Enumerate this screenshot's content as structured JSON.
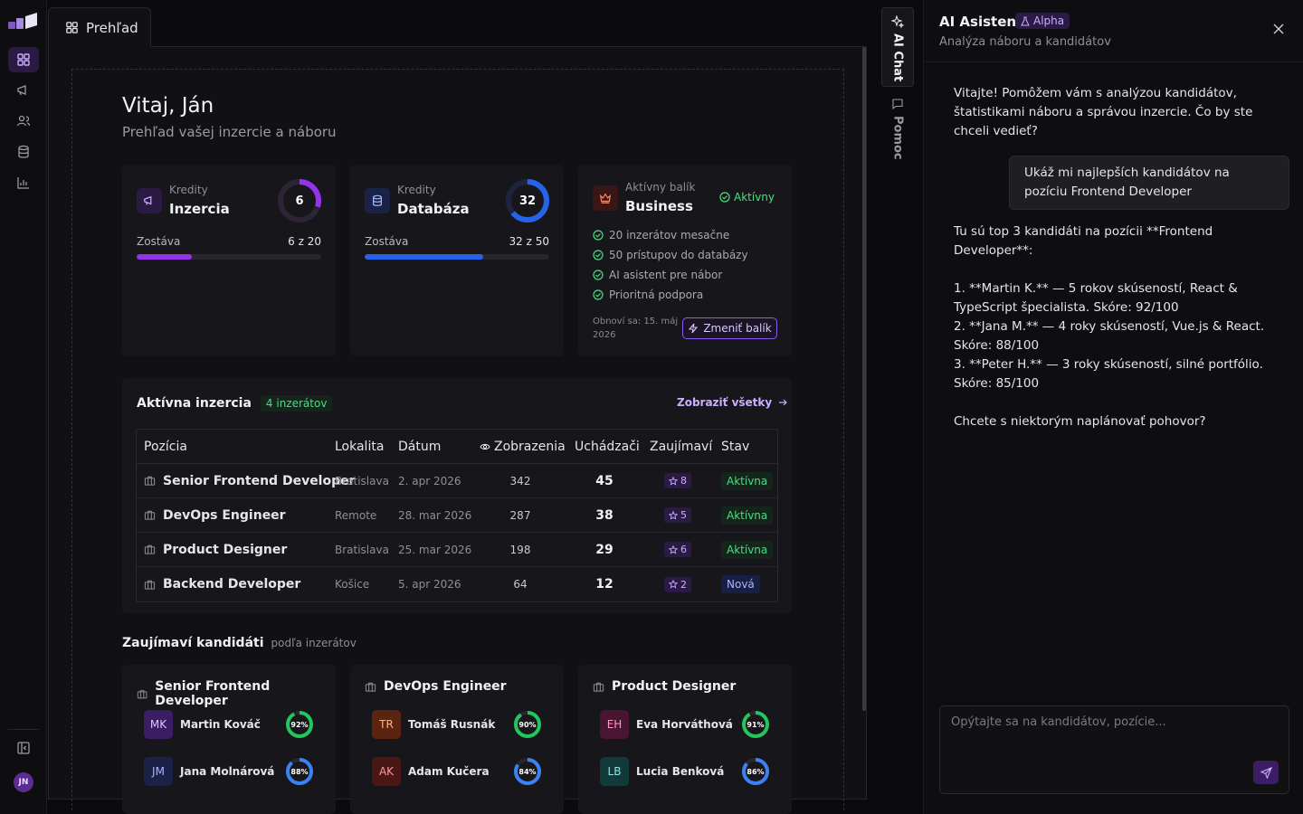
{
  "tab": {
    "label": "Prehľad"
  },
  "user": {
    "initials": "JN"
  },
  "header": {
    "greeting": "Vitaj, Ján",
    "subtitle": "Prehľad vašej inzercie a náboru"
  },
  "credits": [
    {
      "label": "Kredity",
      "name": "Inzercia",
      "value": "6",
      "remaining_label": "Zostáva",
      "remaining": "6 z 20",
      "fraction": 0.3,
      "color": "#9333ea",
      "bg": "#2a1a44"
    },
    {
      "label": "Kredity",
      "name": "Databáza",
      "value": "32",
      "remaining_label": "Zostáva",
      "remaining": "32 z 50",
      "fraction": 0.64,
      "color": "#2563eb",
      "bg": "#1b2248"
    }
  ],
  "package": {
    "label": "Aktívny balík",
    "name": "Business",
    "status": "Aktívny",
    "features": [
      "20 inzerátov mesačne",
      "50 prístupov do databázy",
      "AI asistent pre nábor",
      "Prioritná podpora"
    ],
    "renew": "Obnoví sa: 15. máj 2026",
    "change_label": "Zmeniť balík"
  },
  "listings": {
    "title": "Aktívna inzercia",
    "count": "4 inzerátov",
    "view_all": "Zobraziť všetky",
    "columns": [
      "Pozícia",
      "Lokalita",
      "Dátum",
      "Zobrazenia",
      "Uchádzači",
      "Zaujímaví",
      "Stav"
    ],
    "rows": [
      {
        "position": "Senior Frontend Developer",
        "location": "Bratislava",
        "date": "2. apr 2026",
        "views": "342",
        "applicants": "45",
        "interesting": "8",
        "status": "Aktívna",
        "status_type": "green"
      },
      {
        "position": "DevOps Engineer",
        "location": "Remote",
        "date": "28. mar 2026",
        "views": "287",
        "applicants": "38",
        "interesting": "5",
        "status": "Aktívna",
        "status_type": "green"
      },
      {
        "position": "Product Designer",
        "location": "Bratislava",
        "date": "25. mar 2026",
        "views": "198",
        "applicants": "29",
        "interesting": "6",
        "status": "Aktívna",
        "status_type": "green"
      },
      {
        "position": "Backend Developer",
        "location": "Košice",
        "date": "5. apr 2026",
        "views": "64",
        "applicants": "12",
        "interesting": "2",
        "status": "Nová",
        "status_type": "blue"
      }
    ]
  },
  "candidates": {
    "title": "Zaujímaví kandidáti",
    "subtitle": "podľa inzerátov",
    "groups": [
      {
        "position": "Senior Frontend Developer",
        "people": [
          {
            "initials": "MK",
            "name": "Martin Kováč",
            "score": 92,
            "score_label": "92%",
            "av_bg": "#3b1d63",
            "av_fg": "#d9c8ff",
            "ring": "#22c55e"
          },
          {
            "initials": "JM",
            "name": "Jana Molnárová",
            "score": 88,
            "score_label": "88%",
            "av_bg": "#1b2248",
            "av_fg": "#a5b8ff",
            "ring": "#3b82f6"
          }
        ]
      },
      {
        "position": "DevOps Engineer",
        "people": [
          {
            "initials": "TR",
            "name": "Tomáš Rusnák",
            "score": 90,
            "score_label": "90%",
            "av_bg": "#5a2410",
            "av_fg": "#ffb48a",
            "ring": "#22c55e"
          },
          {
            "initials": "AK",
            "name": "Adam Kučera",
            "score": 84,
            "score_label": "84%",
            "av_bg": "#4a1717",
            "av_fg": "#ff9a9a",
            "ring": "#3b82f6"
          }
        ]
      },
      {
        "position": "Product Designer",
        "people": [
          {
            "initials": "EH",
            "name": "Eva Horváthová",
            "score": 91,
            "score_label": "91%",
            "av_bg": "#4a1530",
            "av_fg": "#ff9ac8",
            "ring": "#22c55e"
          },
          {
            "initials": "LB",
            "name": "Lucia Benková",
            "score": 86,
            "score_label": "86%",
            "av_bg": "#123a3a",
            "av_fg": "#8fe3e3",
            "ring": "#3b82f6"
          }
        ]
      }
    ]
  },
  "vtabs": {
    "ai_chat": "AI Chat",
    "help": "Pomoc"
  },
  "ai": {
    "title": "AI Asistent",
    "badge": "Alpha",
    "subtitle": "Analýza náboru a kandidátov",
    "messages": [
      {
        "role": "assistant",
        "text": "Vitajte! Pomôžem vám s analýzou kandidátov, štatistikami náboru a správou inzercie. Čo by ste chceli vedieť?"
      },
      {
        "role": "user",
        "text": "Ukáž mi najlepších kandidátov na pozíciu Frontend Developer"
      },
      {
        "role": "assistant",
        "text": "Tu sú top 3 kandidáti na pozícii **Frontend Developer**:\n\n1. **Martin K.** — 5 rokov skúseností, React & TypeScript špecialista. Skóre: 92/100\n2. **Jana M.** — 4 roky skúseností, Vue.js & React. Skóre: 88/100\n3. **Peter H.** — 3 roky skúseností, silné portfólio. Skóre: 85/100\n\nChcete s niektorým naplánovať pohovor?"
      }
    ],
    "input_placeholder": "Opýtajte sa na kandidátov, pozície..."
  }
}
